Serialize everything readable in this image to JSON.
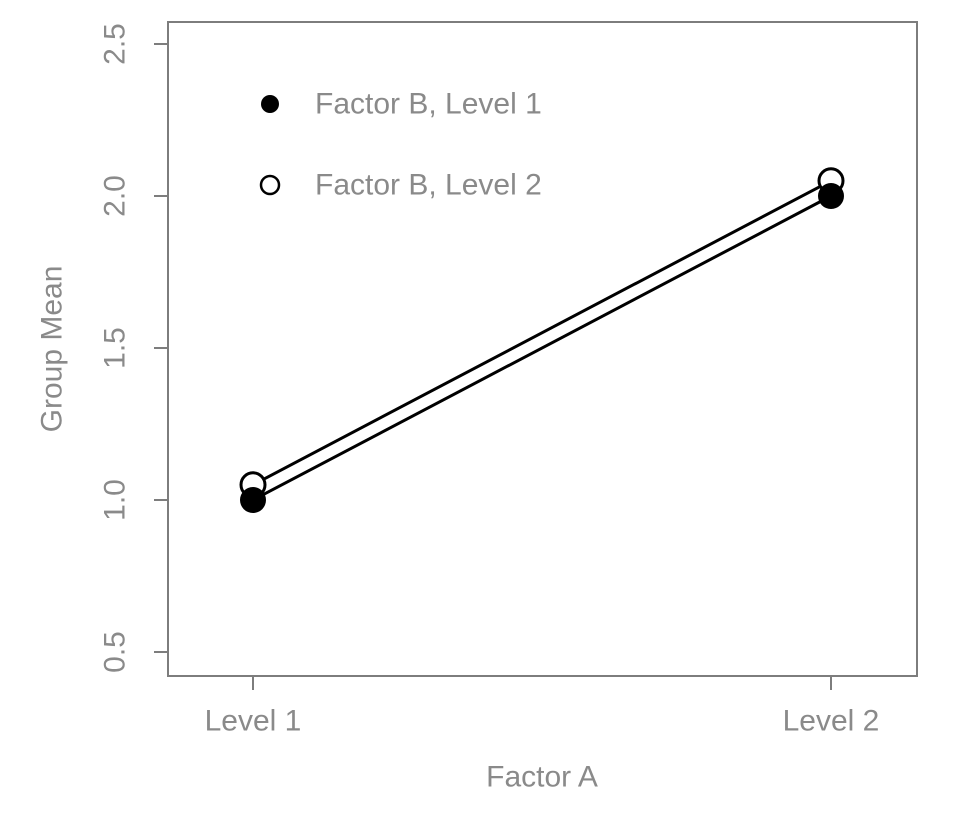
{
  "chart_data": {
    "type": "line",
    "title": "",
    "xlabel": "Factor A",
    "ylabel": "Group Mean",
    "categories": [
      "Level 1",
      "Level 2"
    ],
    "series": [
      {
        "name": "Factor B, Level 1",
        "marker": "filled-circle",
        "values": [
          1.0,
          2.0
        ]
      },
      {
        "name": "Factor B, Level 2",
        "marker": "open-circle",
        "values": [
          1.05,
          2.05
        ]
      }
    ],
    "y_tick_labels": [
      "0.5",
      "1.0",
      "1.5",
      "2.0",
      "2.5"
    ],
    "ylim": [
      0.42,
      2.57
    ],
    "grid": "off",
    "legend_position": "top-left-inside",
    "colors": {
      "series": "#000000",
      "axis": "#7d7d7d",
      "text": "#8a8a8a",
      "background": "#ffffff"
    }
  }
}
